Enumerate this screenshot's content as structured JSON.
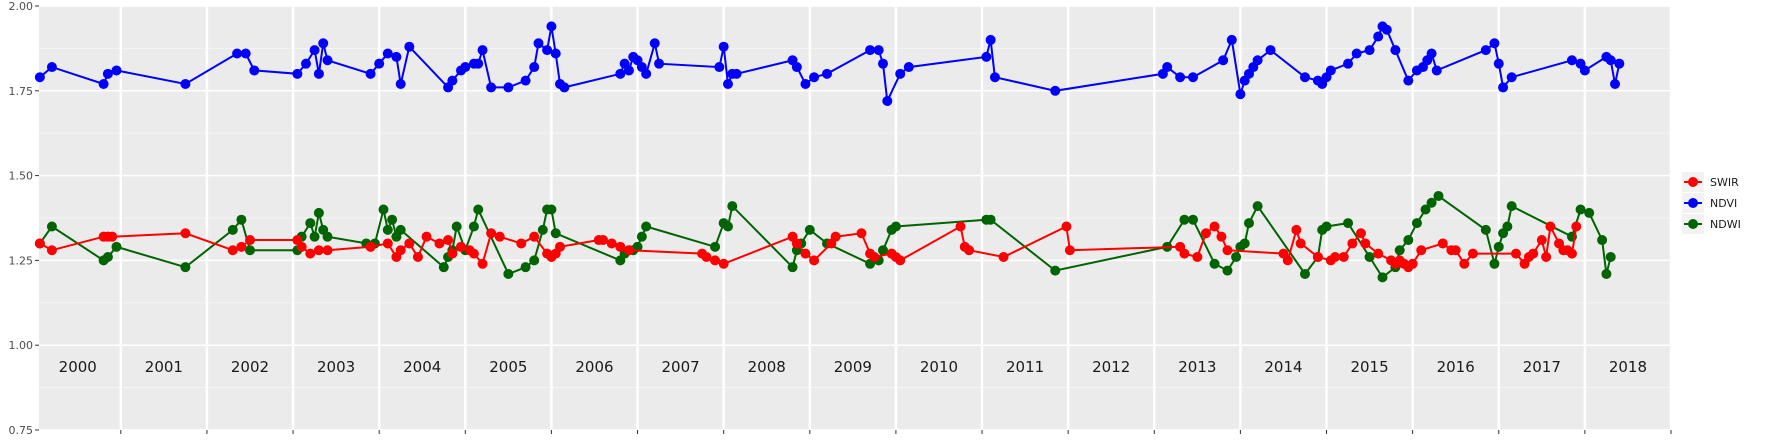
{
  "chart_data": {
    "type": "line",
    "title": "",
    "xlabel": "",
    "ylabel": "",
    "ylim": [
      0.75,
      2.0
    ],
    "xlim": [
      1999.55,
      2018.5
    ],
    "y_ticks": [
      "0.75",
      "1.00",
      "1.25",
      "1.50",
      "1.75",
      "2.00"
    ],
    "y_tick_values": [
      0.75,
      1.0,
      1.25,
      1.5,
      1.75,
      2.0
    ],
    "x_tick_values": [
      2000,
      2001,
      2002,
      2003,
      2004,
      2005,
      2006,
      2007,
      2008,
      2009,
      2010,
      2011,
      2012,
      2013,
      2014,
      2015,
      2016,
      2017,
      2018
    ],
    "year_labels": [
      "2000",
      "2001",
      "2002",
      "2003",
      "2004",
      "2005",
      "2006",
      "2007",
      "2008",
      "2009",
      "2010",
      "2011",
      "2012",
      "2013",
      "2014",
      "2015",
      "2016",
      "2017",
      "2018"
    ],
    "grid": true,
    "background": "#ebebeb",
    "legend_position": "right",
    "series": [
      {
        "name": "SWIR",
        "color": "#ff0000",
        "x": [
          1999.56,
          1999.7,
          2000.3,
          2000.35,
          2000.4,
          2001.25,
          2001.8,
          2001.9,
          2002.0,
          2002.55,
          2002.6,
          2002.7,
          2002.8,
          2002.9,
          2003.4,
          2003.6,
          2003.7,
          2003.75,
          2003.85,
          2003.95,
          2004.05,
          2004.2,
          2004.3,
          2004.35,
          2004.45,
          2004.55,
          2004.6,
          2004.7,
          2004.8,
          2004.9,
          2005.15,
          2005.3,
          2005.45,
          2005.5,
          2005.55,
          2005.6,
          2006.05,
          2006.1,
          2006.2,
          2006.3,
          2006.4,
          2007.25,
          2007.3,
          2007.4,
          2007.5,
          2008.3,
          2008.35,
          2008.45,
          2008.55,
          2008.75,
          2008.8,
          2009.1,
          2009.2,
          2009.25,
          2009.45,
          2009.5,
          2009.55,
          2010.25,
          2010.3,
          2010.35,
          2010.75,
          2011.48,
          2011.52,
          2012.8,
          2012.85,
          2013.0,
          2013.1,
          2013.2,
          2013.28,
          2013.35,
          2014.0,
          2014.05,
          2014.15,
          2014.2,
          2014.4,
          2014.55,
          2014.6,
          2014.7,
          2014.8,
          2014.9,
          2014.95,
          2015.1,
          2015.25,
          2015.3,
          2015.35,
          2015.4,
          2015.45,
          2015.5,
          2015.6,
          2015.85,
          2015.95,
          2016.0,
          2016.1,
          2016.2,
          2016.7,
          2016.8,
          2016.85,
          2016.9,
          2017.0,
          2017.05,
          2017.1,
          2017.2,
          2017.25,
          2017.3,
          2017.35,
          2017.4
        ],
        "y": [
          1.3,
          1.28,
          1.32,
          1.32,
          1.32,
          1.33,
          1.28,
          1.29,
          1.31,
          1.31,
          1.29,
          1.27,
          1.28,
          1.28,
          1.29,
          1.3,
          1.26,
          1.28,
          1.3,
          1.26,
          1.32,
          1.3,
          1.31,
          1.27,
          1.29,
          1.28,
          1.27,
          1.24,
          1.33,
          1.32,
          1.3,
          1.32,
          1.27,
          1.26,
          1.27,
          1.29,
          1.31,
          1.31,
          1.3,
          1.29,
          1.28,
          1.27,
          1.26,
          1.25,
          1.24,
          1.32,
          1.3,
          1.27,
          1.25,
          1.3,
          1.32,
          1.33,
          1.27,
          1.26,
          1.27,
          1.26,
          1.25,
          1.35,
          1.29,
          1.28,
          1.26,
          1.35,
          1.28,
          1.29,
          1.27,
          1.26,
          1.33,
          1.35,
          1.32,
          1.28,
          1.27,
          1.25,
          1.34,
          1.3,
          1.26,
          1.25,
          1.26,
          1.26,
          1.3,
          1.33,
          1.3,
          1.27,
          1.25,
          1.24,
          1.25,
          1.24,
          1.23,
          1.24,
          1.28,
          1.3,
          1.28,
          1.28,
          1.24,
          1.27,
          1.27,
          1.24,
          1.26,
          1.27,
          1.31,
          1.26,
          1.35,
          1.3,
          1.28,
          1.28,
          1.27,
          1.35
        ],
        "values_note": ""
      }
    ]
  },
  "legend": {
    "items": [
      {
        "label": "SWIR",
        "color": "#ff0000"
      },
      {
        "label": "NDVI",
        "color": "#0000ff"
      },
      {
        "label": "NDWI",
        "color": "#006400"
      }
    ]
  }
}
